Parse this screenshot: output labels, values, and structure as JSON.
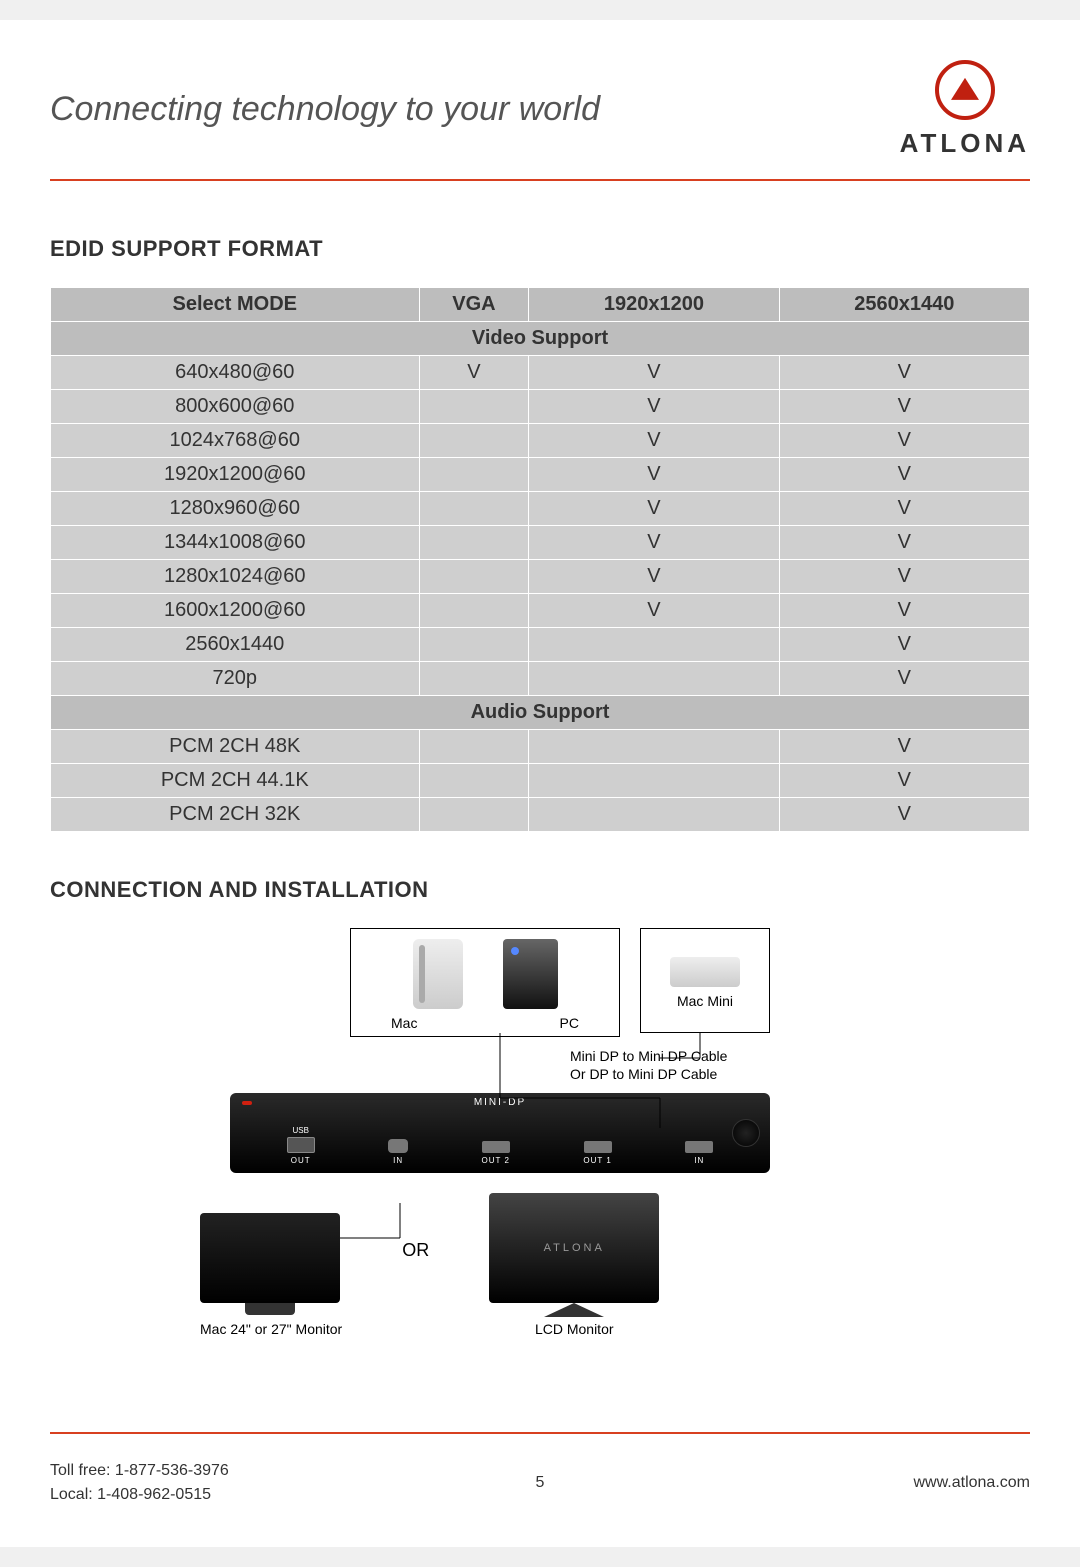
{
  "header": {
    "tagline": "Connecting technology to your world",
    "logo_text": "ATLONA"
  },
  "section1_title": "EDID SUPPORT FORMAT",
  "table": {
    "header": [
      "Select MODE",
      "VGA",
      "1920x1200",
      "2560x1440"
    ],
    "video_header": "Video Support",
    "video_rows": [
      [
        "640x480@60",
        "V",
        "V",
        "V"
      ],
      [
        "800x600@60",
        "",
        "V",
        "V"
      ],
      [
        "1024x768@60",
        "",
        "V",
        "V"
      ],
      [
        "1920x1200@60",
        "",
        "V",
        "V"
      ],
      [
        "1280x960@60",
        "",
        "V",
        "V"
      ],
      [
        "1344x1008@60",
        "",
        "V",
        "V"
      ],
      [
        "1280x1024@60",
        "",
        "V",
        "V"
      ],
      [
        "1600x1200@60",
        "",
        "V",
        "V"
      ],
      [
        "2560x1440",
        "",
        "",
        "V"
      ],
      [
        "720p",
        "",
        "",
        "V"
      ]
    ],
    "audio_header": "Audio Support",
    "audio_rows": [
      [
        "PCM 2CH 48K",
        "",
        "",
        "V"
      ],
      [
        "PCM 2CH 44.1K",
        "",
        "",
        "V"
      ],
      [
        "PCM 2CH 32K",
        "",
        "",
        "V"
      ]
    ]
  },
  "section2_title": "CONNECTION AND INSTALLATION",
  "diagram": {
    "devices": {
      "mac": "Mac",
      "pc": "PC",
      "mac_mini": "Mac Mini"
    },
    "cable_note_l1": "Mini DP to Mini DP Cable",
    "cable_note_l2": "Or DP to Mini DP Cable",
    "switch_label": "MINI-DP",
    "usb_label": "USB",
    "ports": [
      "OUT",
      "IN",
      "OUT 2",
      "OUT 1",
      "IN"
    ],
    "or": "OR",
    "monitor1_label": "Mac 24\" or 27\" Monitor",
    "monitor2_label": "LCD Monitor",
    "monitor2_brand": "ATLONA"
  },
  "footer": {
    "toll_free": "Toll free: 1-877-536-3976",
    "local": "Local: 1-408-962-0515",
    "page": "5",
    "url": "www.atlona.com"
  },
  "colors": {
    "accent": "#d84020",
    "table_cell": "#cfcfcf",
    "table_header": "#bdbdbd"
  }
}
